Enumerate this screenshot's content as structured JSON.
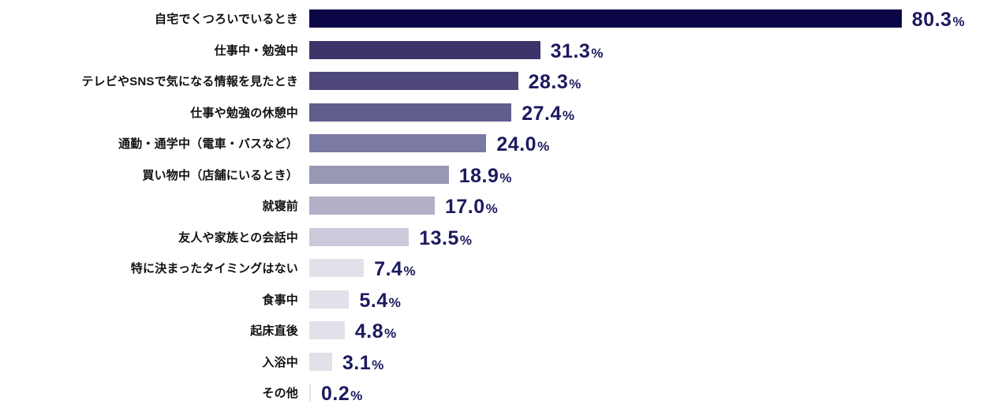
{
  "chart_data": {
    "type": "bar",
    "orientation": "horizontal",
    "title": "",
    "xlabel": "",
    "ylabel": "",
    "xlim": [
      0,
      85
    ],
    "grid": false,
    "legend": false,
    "value_suffix": "%",
    "categories": [
      "自宅でくつろいでいるとき",
      "仕事中・勉強中",
      "テレビやSNSで気になる情報を見たとき",
      "仕事や勉強の休憩中",
      "通勤・通学中（電車・バスなど）",
      "買い物中（店舗にいるとき）",
      "就寝前",
      "友人や家族との会話中",
      "特に決まったタイミングはない",
      "食事中",
      "起床直後",
      "入浴中",
      "その他"
    ],
    "values": [
      80.3,
      31.3,
      28.3,
      27.4,
      24.0,
      18.9,
      17.0,
      13.5,
      7.4,
      5.4,
      4.8,
      3.1,
      0.2
    ],
    "bar_colors": [
      "#0b0747",
      "#3b3569",
      "#4d4879",
      "#615e8c",
      "#7b7aa2",
      "#9897b4",
      "#b2b1c8",
      "#cbcadb",
      "#e2e1e9",
      "#e2e1e9",
      "#e2e1e9",
      "#e2e1e9",
      "#e2e1e9"
    ],
    "label_color": "#111111",
    "value_color": "#1c1a5e",
    "background": "#ffffff"
  }
}
